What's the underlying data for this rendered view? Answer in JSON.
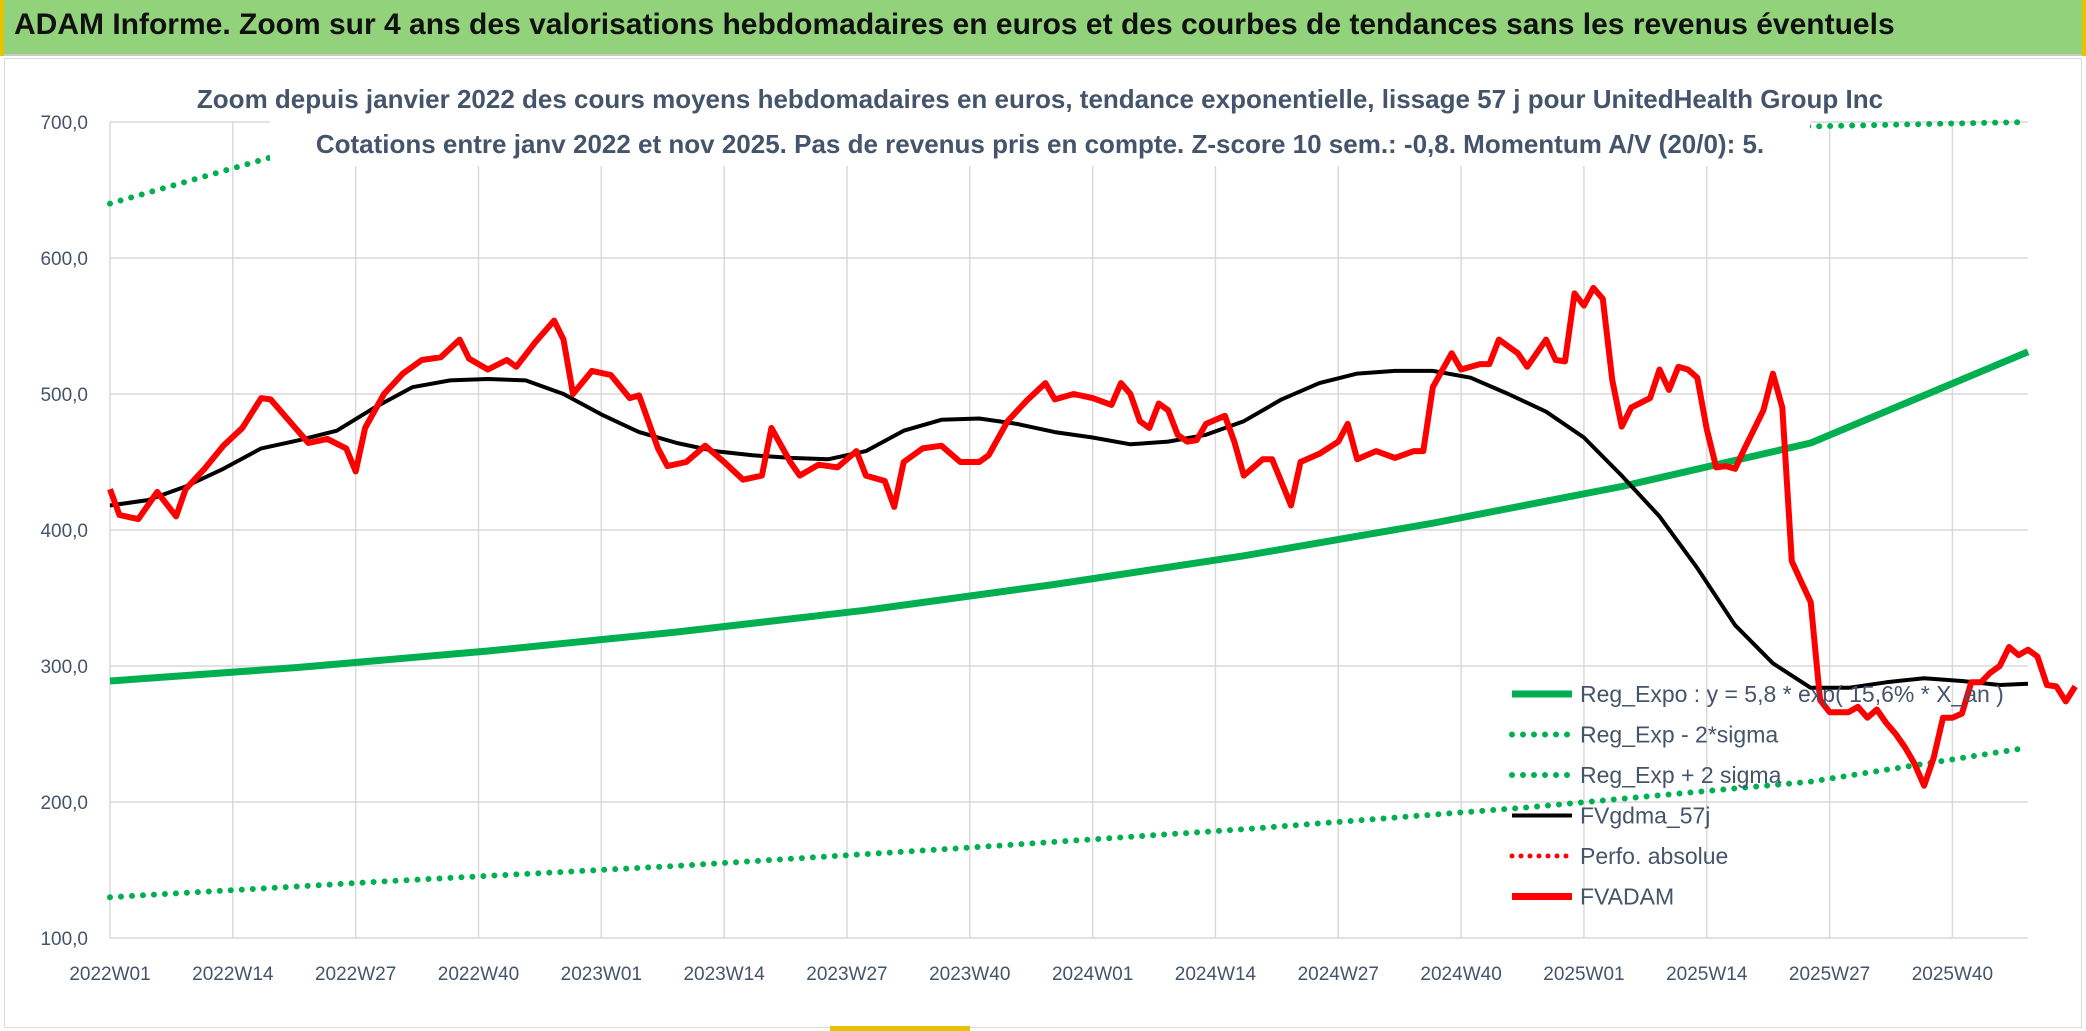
{
  "banner": {
    "title": "ADAM Informe. Zoom sur 4 ans des valorisations hebdomadaires en euros et des courbes de tendances sans les revenus éventuels"
  },
  "colors": {
    "banner_bg": "#92d27a",
    "accent_yellow": "#e6c200",
    "regression": "#00b050",
    "price": "#ff0000",
    "smooth": "#000000",
    "text": "#44546a"
  },
  "chart_data": {
    "type": "line",
    "title_line1": "Zoom depuis janvier 2022 des cours moyens hebdomadaires en euros, tendance exponentielle, lissage 57 j pour UnitedHealth Group Inc",
    "title_line2": "Cotations entre janv 2022 et nov 2025. Pas de revenus pris en compte. Z-score 10 sem.: -0,8. Momentum A/V (20/0): 5.",
    "ylim": [
      100,
      700
    ],
    "y_ticks": [
      "100,0",
      "200,0",
      "300,0",
      "400,0",
      "500,0",
      "600,0",
      "700,0"
    ],
    "x_ticks": [
      "2022W01",
      "2022W14",
      "2022W27",
      "2022W40",
      "2023W01",
      "2023W14",
      "2023W27",
      "2023W40",
      "2024W01",
      "2024W14",
      "2024W27",
      "2024W40",
      "2025W01",
      "2025W14",
      "2025W27",
      "2025W40"
    ],
    "x_range_weeks": [
      0,
      203
    ],
    "legend": [
      {
        "name": "Reg_Expo : y = 5,8 * exp( 15,6% * X_an )",
        "style": "solid-green"
      },
      {
        "name": "Reg_Exp - 2*sigma",
        "style": "dotted-green"
      },
      {
        "name": "Reg_Exp + 2 sigma",
        "style": "dotted-green"
      },
      {
        "name": "FVgdma_57j",
        "style": "solid-black"
      },
      {
        "name": "Perfo. absolue",
        "style": "dotted-red"
      },
      {
        "name": "FVADAM",
        "style": "solid-red"
      }
    ],
    "series": [
      {
        "name": "Reg_Expo",
        "points": [
          [
            0,
            289
          ],
          [
            20,
            299
          ],
          [
            40,
            311
          ],
          [
            60,
            325
          ],
          [
            80,
            341
          ],
          [
            100,
            360
          ],
          [
            120,
            381
          ],
          [
            140,
            405
          ],
          [
            160,
            432
          ],
          [
            180,
            464
          ],
          [
            203,
            531
          ]
        ]
      },
      {
        "name": "Reg_Exp - 2*sigma",
        "points": [
          [
            0,
            130
          ],
          [
            30,
            142
          ],
          [
            60,
            153
          ],
          [
            90,
            166
          ],
          [
            120,
            180
          ],
          [
            150,
            196
          ],
          [
            180,
            215
          ],
          [
            203,
            240
          ]
        ]
      },
      {
        "name": "Reg_Exp + 2 sigma",
        "points": [
          [
            0,
            640
          ],
          [
            17,
            674
          ],
          [
            203,
            700
          ]
        ]
      },
      {
        "name": "FVgdma_57j",
        "points": [
          [
            0,
            418
          ],
          [
            4,
            422
          ],
          [
            8,
            432
          ],
          [
            12,
            445
          ],
          [
            16,
            460
          ],
          [
            20,
            466
          ],
          [
            24,
            473
          ],
          [
            28,
            490
          ],
          [
            32,
            505
          ],
          [
            36,
            510
          ],
          [
            40,
            511
          ],
          [
            44,
            510
          ],
          [
            48,
            500
          ],
          [
            52,
            485
          ],
          [
            56,
            472
          ],
          [
            60,
            464
          ],
          [
            64,
            458
          ],
          [
            68,
            455
          ],
          [
            72,
            453
          ],
          [
            76,
            452
          ],
          [
            80,
            458
          ],
          [
            84,
            473
          ],
          [
            88,
            481
          ],
          [
            92,
            482
          ],
          [
            96,
            478
          ],
          [
            100,
            472
          ],
          [
            104,
            468
          ],
          [
            108,
            463
          ],
          [
            112,
            465
          ],
          [
            116,
            470
          ],
          [
            120,
            480
          ],
          [
            124,
            496
          ],
          [
            128,
            508
          ],
          [
            132,
            515
          ],
          [
            136,
            517
          ],
          [
            140,
            517
          ],
          [
            144,
            512
          ],
          [
            148,
            500
          ],
          [
            152,
            487
          ],
          [
            156,
            468
          ],
          [
            160,
            440
          ],
          [
            164,
            410
          ],
          [
            168,
            372
          ],
          [
            172,
            330
          ],
          [
            176,
            302
          ],
          [
            180,
            284
          ],
          [
            184,
            284
          ],
          [
            188,
            288
          ],
          [
            192,
            291
          ],
          [
            196,
            289
          ],
          [
            200,
            286
          ],
          [
            203,
            287
          ]
        ]
      },
      {
        "name": "FVADAM",
        "points": [
          [
            0,
            430
          ],
          [
            1,
            411
          ],
          [
            3,
            408
          ],
          [
            5,
            428
          ],
          [
            7,
            410
          ],
          [
            8,
            430
          ],
          [
            10,
            445
          ],
          [
            12,
            462
          ],
          [
            14,
            475
          ],
          [
            16,
            497
          ],
          [
            17,
            496
          ],
          [
            19,
            480
          ],
          [
            21,
            464
          ],
          [
            23,
            467
          ],
          [
            25,
            460
          ],
          [
            26,
            443
          ],
          [
            27,
            475
          ],
          [
            29,
            500
          ],
          [
            31,
            515
          ],
          [
            33,
            525
          ],
          [
            35,
            527
          ],
          [
            37,
            540
          ],
          [
            38,
            526
          ],
          [
            40,
            518
          ],
          [
            42,
            525
          ],
          [
            43,
            520
          ],
          [
            45,
            538
          ],
          [
            47,
            554
          ],
          [
            48,
            540
          ],
          [
            49,
            500
          ],
          [
            51,
            517
          ],
          [
            53,
            514
          ],
          [
            55,
            497
          ],
          [
            56,
            499
          ],
          [
            58,
            460
          ],
          [
            59,
            447
          ],
          [
            61,
            450
          ],
          [
            63,
            462
          ],
          [
            65,
            450
          ],
          [
            67,
            437
          ],
          [
            69,
            440
          ],
          [
            70,
            475
          ],
          [
            72,
            450
          ],
          [
            73,
            440
          ],
          [
            75,
            448
          ],
          [
            77,
            446
          ],
          [
            79,
            458
          ],
          [
            80,
            440
          ],
          [
            82,
            436
          ],
          [
            83,
            417
          ],
          [
            84,
            450
          ],
          [
            86,
            460
          ],
          [
            88,
            462
          ],
          [
            90,
            450
          ],
          [
            92,
            450
          ],
          [
            93,
            455
          ],
          [
            95,
            480
          ],
          [
            97,
            495
          ],
          [
            99,
            508
          ],
          [
            100,
            496
          ],
          [
            102,
            500
          ],
          [
            104,
            497
          ],
          [
            106,
            492
          ],
          [
            107,
            508
          ],
          [
            108,
            500
          ],
          [
            109,
            480
          ],
          [
            110,
            475
          ],
          [
            111,
            493
          ],
          [
            112,
            488
          ],
          [
            113,
            470
          ],
          [
            114,
            465
          ],
          [
            115,
            466
          ],
          [
            116,
            478
          ],
          [
            118,
            484
          ],
          [
            119,
            465
          ],
          [
            120,
            440
          ],
          [
            122,
            452
          ],
          [
            123,
            452
          ],
          [
            124,
            435
          ],
          [
            125,
            418
          ],
          [
            126,
            450
          ],
          [
            128,
            456
          ],
          [
            130,
            465
          ],
          [
            131,
            478
          ],
          [
            132,
            452
          ],
          [
            134,
            458
          ],
          [
            136,
            453
          ],
          [
            138,
            458
          ],
          [
            139,
            458
          ],
          [
            140,
            505
          ],
          [
            142,
            530
          ],
          [
            143,
            518
          ],
          [
            145,
            522
          ],
          [
            146,
            522
          ],
          [
            147,
            540
          ],
          [
            149,
            530
          ],
          [
            150,
            520
          ],
          [
            152,
            540
          ],
          [
            153,
            525
          ],
          [
            154,
            524
          ],
          [
            155,
            574
          ],
          [
            156,
            565
          ],
          [
            157,
            578
          ],
          [
            158,
            570
          ],
          [
            159,
            510
          ],
          [
            160,
            476
          ],
          [
            161,
            490
          ],
          [
            163,
            497
          ],
          [
            164,
            518
          ],
          [
            165,
            503
          ],
          [
            166,
            520
          ],
          [
            167,
            518
          ],
          [
            168,
            512
          ],
          [
            169,
            474
          ],
          [
            170,
            446
          ],
          [
            171,
            447
          ],
          [
            172,
            445
          ],
          [
            173,
            460
          ],
          [
            175,
            488
          ],
          [
            176,
            515
          ],
          [
            177,
            490
          ],
          [
            178,
            377
          ],
          [
            179,
            362
          ],
          [
            180,
            347
          ],
          [
            181,
            275
          ],
          [
            182,
            266
          ],
          [
            184,
            266
          ],
          [
            185,
            270
          ],
          [
            186,
            262
          ],
          [
            187,
            268
          ],
          [
            188,
            258
          ],
          [
            189,
            250
          ],
          [
            190,
            240
          ],
          [
            191,
            228
          ],
          [
            192,
            212
          ],
          [
            193,
            232
          ],
          [
            194,
            262
          ],
          [
            195,
            262
          ],
          [
            196,
            265
          ],
          [
            197,
            288
          ],
          [
            198,
            288
          ],
          [
            199,
            295
          ],
          [
            200,
            300
          ],
          [
            201,
            314
          ],
          [
            202,
            308
          ],
          [
            203,
            312
          ],
          [
            204,
            307
          ],
          [
            205,
            286
          ],
          [
            206,
            285
          ],
          [
            207,
            274
          ],
          [
            208,
            285
          ]
        ]
      }
    ]
  }
}
